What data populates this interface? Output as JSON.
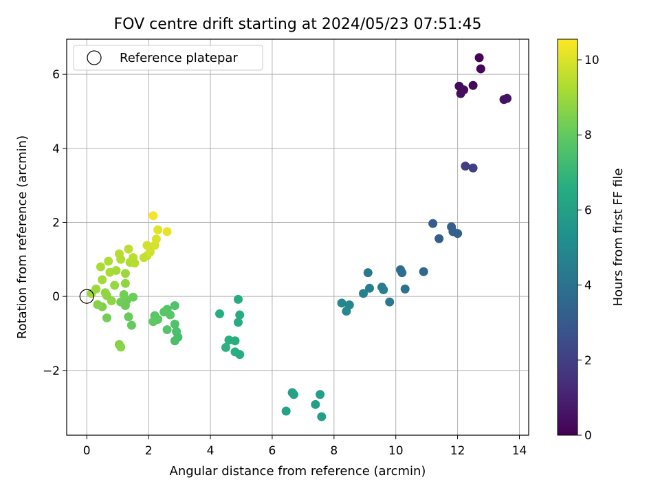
{
  "chart_data": {
    "type": "scatter",
    "title": "FOV centre drift starting at 2024/05/23 07:51:45",
    "xlabel": "Angular distance from reference (arcmin)",
    "ylabel": "Rotation from reference (arcmin)",
    "xlim": [
      -0.65,
      14.3
    ],
    "ylim": [
      -3.75,
      6.95
    ],
    "xticks": [
      0,
      2,
      4,
      6,
      8,
      10,
      12,
      14
    ],
    "yticks": [
      -2,
      0,
      2,
      4,
      6
    ],
    "ytick_labels": [
      "−2",
      "0",
      "2",
      "4",
      "6"
    ],
    "grid": true,
    "legend": {
      "position": "top-left",
      "label": "Reference platepar"
    },
    "reference_point": {
      "x": 0,
      "y": 0
    },
    "colorbar": {
      "label": "Hours from first FF file",
      "range": [
        0,
        10.55
      ],
      "ticks": [
        0,
        2,
        4,
        6,
        8,
        10
      ],
      "colormap": "viridis"
    },
    "points": [
      {
        "x": 12.7,
        "y": 6.45,
        "t": 0.1
      },
      {
        "x": 12.75,
        "y": 6.15,
        "t": 0.15
      },
      {
        "x": 12.05,
        "y": 5.68,
        "t": 0.3
      },
      {
        "x": 12.5,
        "y": 5.7,
        "t": 0.25
      },
      {
        "x": 12.2,
        "y": 5.58,
        "t": 0.35
      },
      {
        "x": 12.1,
        "y": 5.48,
        "t": 0.4
      },
      {
        "x": 13.5,
        "y": 5.32,
        "t": 0.5
      },
      {
        "x": 13.6,
        "y": 5.35,
        "t": 0.55
      },
      {
        "x": 12.25,
        "y": 3.52,
        "t": 1.9
      },
      {
        "x": 12.5,
        "y": 3.47,
        "t": 2.0
      },
      {
        "x": 11.2,
        "y": 1.97,
        "t": 3.1
      },
      {
        "x": 11.8,
        "y": 1.88,
        "t": 3.2
      },
      {
        "x": 11.85,
        "y": 1.75,
        "t": 3.25
      },
      {
        "x": 12.0,
        "y": 1.7,
        "t": 3.3
      },
      {
        "x": 11.4,
        "y": 1.56,
        "t": 3.15
      },
      {
        "x": 10.9,
        "y": 0.67,
        "t": 3.6
      },
      {
        "x": 10.15,
        "y": 0.72,
        "t": 3.8
      },
      {
        "x": 10.2,
        "y": 0.64,
        "t": 3.85
      },
      {
        "x": 10.3,
        "y": 0.2,
        "t": 4.0
      },
      {
        "x": 9.1,
        "y": 0.64,
        "t": 4.3
      },
      {
        "x": 9.55,
        "y": 0.25,
        "t": 4.4
      },
      {
        "x": 9.6,
        "y": 0.18,
        "t": 4.45
      },
      {
        "x": 9.15,
        "y": 0.22,
        "t": 4.5
      },
      {
        "x": 8.95,
        "y": 0.08,
        "t": 4.6
      },
      {
        "x": 9.8,
        "y": -0.15,
        "t": 4.2
      },
      {
        "x": 8.25,
        "y": -0.18,
        "t": 4.9
      },
      {
        "x": 8.5,
        "y": -0.23,
        "t": 4.85
      },
      {
        "x": 8.4,
        "y": -0.4,
        "t": 4.95
      },
      {
        "x": 6.65,
        "y": -2.6,
        "t": 6.0
      },
      {
        "x": 6.7,
        "y": -2.65,
        "t": 6.05
      },
      {
        "x": 7.55,
        "y": -2.65,
        "t": 5.9
      },
      {
        "x": 7.4,
        "y": -2.92,
        "t": 5.95
      },
      {
        "x": 6.45,
        "y": -3.1,
        "t": 6.1
      },
      {
        "x": 7.6,
        "y": -3.25,
        "t": 6.0
      },
      {
        "x": 4.9,
        "y": -0.08,
        "t": 6.5
      },
      {
        "x": 4.95,
        "y": -0.5,
        "t": 6.55
      },
      {
        "x": 4.3,
        "y": -0.47,
        "t": 6.6
      },
      {
        "x": 4.9,
        "y": -0.7,
        "t": 6.5
      },
      {
        "x": 4.6,
        "y": -1.18,
        "t": 6.7
      },
      {
        "x": 4.8,
        "y": -1.2,
        "t": 6.65
      },
      {
        "x": 4.5,
        "y": -1.38,
        "t": 6.75
      },
      {
        "x": 4.8,
        "y": -1.5,
        "t": 6.7
      },
      {
        "x": 4.95,
        "y": -1.57,
        "t": 6.6
      },
      {
        "x": 2.85,
        "y": -0.25,
        "t": 7.6
      },
      {
        "x": 2.6,
        "y": -0.35,
        "t": 7.7
      },
      {
        "x": 2.5,
        "y": -0.42,
        "t": 7.75
      },
      {
        "x": 2.7,
        "y": -0.5,
        "t": 7.8
      },
      {
        "x": 2.2,
        "y": -0.52,
        "t": 7.85
      },
      {
        "x": 2.3,
        "y": -0.62,
        "t": 7.9
      },
      {
        "x": 2.15,
        "y": -0.68,
        "t": 7.95
      },
      {
        "x": 2.85,
        "y": -0.75,
        "t": 7.6
      },
      {
        "x": 2.6,
        "y": -0.9,
        "t": 7.7
      },
      {
        "x": 2.9,
        "y": -0.95,
        "t": 7.5
      },
      {
        "x": 2.95,
        "y": -1.1,
        "t": 7.4
      },
      {
        "x": 2.85,
        "y": -1.2,
        "t": 7.45
      },
      {
        "x": 1.05,
        "y": -1.3,
        "t": 8.6
      },
      {
        "x": 1.1,
        "y": -1.37,
        "t": 8.65
      },
      {
        "x": 0.65,
        "y": -0.58,
        "t": 8.3
      },
      {
        "x": 0.5,
        "y": -0.28,
        "t": 8.5
      },
      {
        "x": 0.35,
        "y": -0.22,
        "t": 8.6
      },
      {
        "x": 1.35,
        "y": -0.55,
        "t": 8.1
      },
      {
        "x": 1.45,
        "y": -0.78,
        "t": 8.05
      },
      {
        "x": 1.3,
        "y": -0.1,
        "t": 8.2
      },
      {
        "x": 1.5,
        "y": -0.02,
        "t": 8.15
      },
      {
        "x": 1.2,
        "y": 0.05,
        "t": 8.3
      },
      {
        "x": 1.1,
        "y": -0.15,
        "t": 8.25
      },
      {
        "x": 1.25,
        "y": -0.25,
        "t": 8.2
      },
      {
        "x": 0.8,
        "y": -0.12,
        "t": 8.8
      },
      {
        "x": 0.65,
        "y": 0.02,
        "t": 8.7
      },
      {
        "x": 0.6,
        "y": 0.1,
        "t": 8.8
      },
      {
        "x": 0.3,
        "y": 0.2,
        "t": 9.0
      },
      {
        "x": 0.15,
        "y": 0.08,
        "t": 9.0
      },
      {
        "x": 0.9,
        "y": 0.3,
        "t": 8.9
      },
      {
        "x": 1.25,
        "y": 0.35,
        "t": 8.8
      },
      {
        "x": 0.5,
        "y": 0.45,
        "t": 9.1
      },
      {
        "x": 0.45,
        "y": 0.8,
        "t": 9.2
      },
      {
        "x": 0.7,
        "y": 0.95,
        "t": 9.3
      },
      {
        "x": 0.75,
        "y": 0.65,
        "t": 9.2
      },
      {
        "x": 0.95,
        "y": 0.7,
        "t": 9.1
      },
      {
        "x": 1.25,
        "y": 0.62,
        "t": 9.0
      },
      {
        "x": 1.05,
        "y": 1.15,
        "t": 9.4
      },
      {
        "x": 1.1,
        "y": 1.0,
        "t": 9.35
      },
      {
        "x": 1.35,
        "y": 1.28,
        "t": 9.5
      },
      {
        "x": 1.4,
        "y": 0.92,
        "t": 9.3
      },
      {
        "x": 1.5,
        "y": 1.05,
        "t": 9.45
      },
      {
        "x": 1.55,
        "y": 0.9,
        "t": 9.4
      },
      {
        "x": 1.85,
        "y": 1.05,
        "t": 9.6
      },
      {
        "x": 1.95,
        "y": 1.1,
        "t": 9.7
      },
      {
        "x": 2.05,
        "y": 1.2,
        "t": 9.8
      },
      {
        "x": 1.95,
        "y": 1.38,
        "t": 9.85
      },
      {
        "x": 2.2,
        "y": 1.38,
        "t": 9.9
      },
      {
        "x": 2.25,
        "y": 1.55,
        "t": 10.0
      },
      {
        "x": 2.3,
        "y": 1.8,
        "t": 10.1
      },
      {
        "x": 2.6,
        "y": 1.75,
        "t": 10.2
      },
      {
        "x": 2.15,
        "y": 2.18,
        "t": 10.4
      }
    ]
  }
}
